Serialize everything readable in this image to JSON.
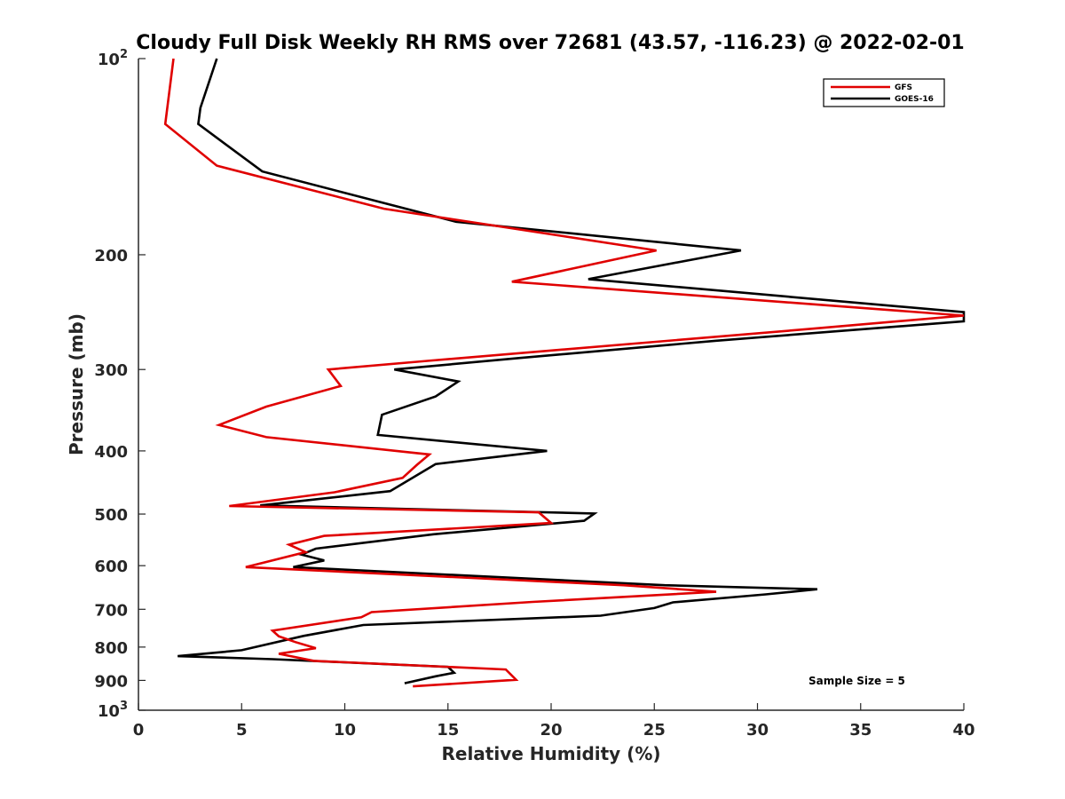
{
  "chart_data": {
    "type": "line",
    "title": "Cloudy Full Disk Weekly RH RMS over 72681 (43.57, -116.23) @ 2022-02-01",
    "xlabel": "Relative Humidity (%)",
    "ylabel": "Pressure (mb)",
    "xlim": [
      0,
      40
    ],
    "ylim": [
      100,
      1000
    ],
    "y_scale": "log",
    "y_reversed": true,
    "x_ticks": [
      "0",
      "5",
      "10",
      "15",
      "20",
      "25",
      "30",
      "35",
      "40"
    ],
    "y_ticks": [
      {
        "value": 100,
        "base": "10",
        "exp": "2"
      },
      {
        "value": 200,
        "label": "200"
      },
      {
        "value": 300,
        "label": "300"
      },
      {
        "value": 400,
        "label": "400"
      },
      {
        "value": 500,
        "label": "500"
      },
      {
        "value": 600,
        "label": "600"
      },
      {
        "value": 700,
        "label": "700"
      },
      {
        "value": 800,
        "label": "800"
      },
      {
        "value": 900,
        "label": "900"
      },
      {
        "value": 1000,
        "base": "10",
        "exp": "3"
      }
    ],
    "legend_position": "top-right",
    "grid": false,
    "series": [
      {
        "name": "GFS",
        "color": "#e00000",
        "points": [
          [
            1.7,
            100
          ],
          [
            1.3,
            126
          ],
          [
            3.8,
            146
          ],
          [
            11.9,
            170
          ],
          [
            25.1,
            197
          ],
          [
            18.1,
            220
          ],
          [
            40.0,
            248
          ],
          [
            32.5,
            260
          ],
          [
            14.0,
            291
          ],
          [
            9.2,
            300
          ],
          [
            9.8,
            318
          ],
          [
            6.2,
            342
          ],
          [
            3.9,
            365
          ],
          [
            6.2,
            381
          ],
          [
            14.1,
            405
          ],
          [
            13.5,
            420
          ],
          [
            12.8,
            440
          ],
          [
            9.5,
            463
          ],
          [
            4.4,
            486
          ],
          [
            19.4,
            497
          ],
          [
            20.0,
            516
          ],
          [
            9.0,
            540
          ],
          [
            7.3,
            557
          ],
          [
            8.1,
            572
          ],
          [
            5.2,
            603
          ],
          [
            23.5,
            643
          ],
          [
            28.0,
            658
          ],
          [
            19.1,
            682
          ],
          [
            11.3,
            707
          ],
          [
            10.8,
            720
          ],
          [
            6.5,
            755
          ],
          [
            6.8,
            770
          ],
          [
            7.6,
            786
          ],
          [
            8.6,
            803
          ],
          [
            6.8,
            819
          ],
          [
            8.5,
            840
          ],
          [
            17.8,
            866
          ],
          [
            18.3,
            898
          ],
          [
            13.3,
            919
          ]
        ]
      },
      {
        "name": "GOES-16",
        "color": "#000000",
        "points": [
          [
            3.8,
            100
          ],
          [
            3.0,
            119
          ],
          [
            2.9,
            126
          ],
          [
            6.0,
            149
          ],
          [
            15.4,
            178
          ],
          [
            29.2,
            197
          ],
          [
            21.8,
            218
          ],
          [
            40.0,
            245
          ],
          [
            40.0,
            253
          ],
          [
            28.0,
            271
          ],
          [
            18.5,
            288
          ],
          [
            12.4,
            300
          ],
          [
            15.5,
            313
          ],
          [
            14.4,
            330
          ],
          [
            11.8,
            352
          ],
          [
            11.6,
            378
          ],
          [
            19.8,
            400
          ],
          [
            14.4,
            419
          ],
          [
            12.2,
            461
          ],
          [
            5.9,
            485
          ],
          [
            22.1,
            499
          ],
          [
            21.6,
            512
          ],
          [
            14.3,
            537
          ],
          [
            8.6,
            565
          ],
          [
            7.9,
            577
          ],
          [
            9.0,
            589
          ],
          [
            7.5,
            603
          ],
          [
            25.5,
            643
          ],
          [
            32.9,
            652
          ],
          [
            30.4,
            664
          ],
          [
            25.9,
            683
          ],
          [
            25.0,
            697
          ],
          [
            22.4,
            716
          ],
          [
            10.9,
            740
          ],
          [
            8.0,
            769
          ],
          [
            5.0,
            809
          ],
          [
            1.9,
            826
          ],
          [
            6.5,
            835
          ],
          [
            15.0,
            858
          ],
          [
            15.3,
            876
          ],
          [
            14.4,
            887
          ],
          [
            12.9,
            909
          ]
        ]
      }
    ],
    "annotations": [
      {
        "text": "Sample Size = 5"
      }
    ]
  }
}
